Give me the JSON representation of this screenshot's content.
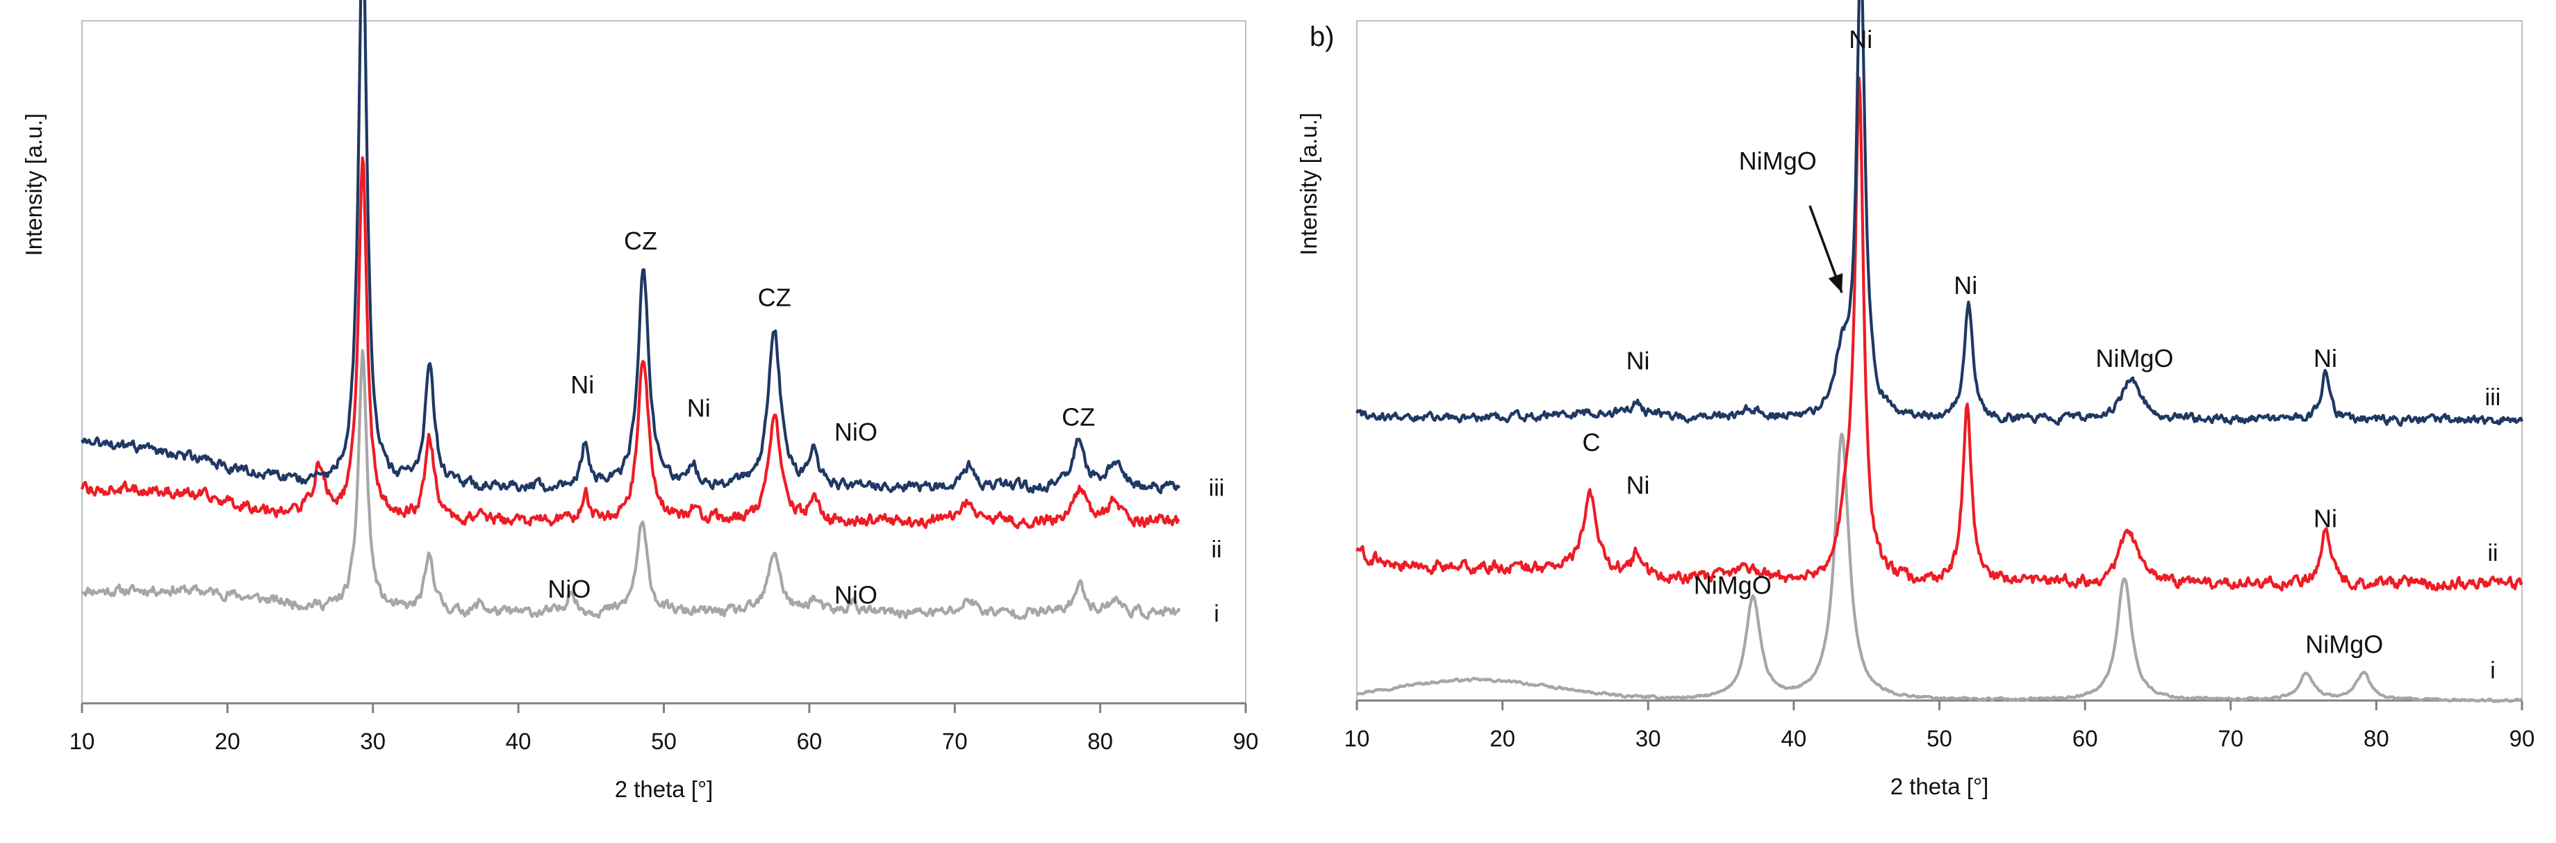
{
  "chart_data": [
    {
      "type": "line",
      "panel_label": "",
      "xlabel": "2 theta [°]",
      "ylabel": "Intensity [a.u.]",
      "xlim": [
        10,
        90
      ],
      "ylim": [
        0,
        1
      ],
      "x_ticks": [
        "10",
        "20",
        "30",
        "40",
        "50",
        "60",
        "70",
        "80",
        "90"
      ],
      "grid": false,
      "series": [
        {
          "name": "i",
          "color": "#a6a6a6",
          "x_end": 85.5,
          "baseline": 0.132,
          "noise": 0.006,
          "start": [
            12,
            0.02
          ],
          "hump": [
            17,
            8,
            0.03
          ],
          "peaks": [
            [
              29.3,
              0.38,
              0.35
            ],
            [
              33.9,
              0.08,
              0.4
            ],
            [
              37.4,
              0.015,
              0.3
            ],
            [
              43.6,
              0.035,
              0.3
            ],
            [
              48.5,
              0.13,
              0.45
            ],
            [
              57.6,
              0.09,
              0.5
            ],
            [
              60.3,
              0.02,
              0.4
            ],
            [
              63,
              0.015,
              0.4
            ],
            [
              71,
              0.02,
              0.5
            ],
            [
              78.6,
              0.04,
              0.5
            ],
            [
              81,
              0.02,
              0.5
            ]
          ]
        },
        {
          "name": "ii",
          "color": "#ee1c25",
          "x_end": 85.5,
          "baseline": 0.266,
          "noise": 0.007,
          "start": [
            12,
            0.02
          ],
          "hump": [
            15,
            8,
            0.04
          ],
          "peaks": [
            [
              26.3,
              0.07,
              0.5
            ],
            [
              29.3,
              0.53,
              0.35
            ],
            [
              33.9,
              0.12,
              0.4
            ],
            [
              37.4,
              0.015,
              0.3
            ],
            [
              44.6,
              0.04,
              0.3
            ],
            [
              48.6,
              0.24,
              0.45
            ],
            [
              52,
              0.02,
              0.3
            ],
            [
              57.6,
              0.15,
              0.5
            ],
            [
              60.3,
              0.03,
              0.4
            ],
            [
              71,
              0.03,
              0.5
            ],
            [
              78.6,
              0.05,
              0.5
            ],
            [
              81,
              0.03,
              0.5
            ]
          ]
        },
        {
          "name": "iii",
          "color": "#1f3864",
          "x_end": 85.5,
          "baseline": 0.316,
          "noise": 0.006,
          "start": [
            12,
            0.05
          ],
          "hump": [
            15.5,
            7,
            0.04
          ],
          "peaks": [
            [
              29.3,
              0.83,
              0.35
            ],
            [
              33.9,
              0.17,
              0.4
            ],
            [
              44.6,
              0.065,
              0.3
            ],
            [
              48.6,
              0.32,
              0.45
            ],
            [
              52,
              0.03,
              0.3
            ],
            [
              57.6,
              0.23,
              0.5
            ],
            [
              60.3,
              0.05,
              0.4
            ],
            [
              71,
              0.03,
              0.5
            ],
            [
              78.5,
              0.07,
              0.5
            ],
            [
              81,
              0.04,
              0.5
            ]
          ]
        }
      ],
      "end_labels": [
        {
          "text": "iii",
          "y": 0.316
        },
        {
          "text": "ii",
          "y": 0.226
        },
        {
          "text": "i",
          "y": 0.132
        }
      ],
      "annotations": [
        {
          "text": "CZ",
          "x": 48.4,
          "y": 0.665
        },
        {
          "text": "CZ",
          "x": 57.6,
          "y": 0.582
        },
        {
          "text": "CZ",
          "x": 78.5,
          "y": 0.407
        },
        {
          "text": "Ni",
          "x": 44.4,
          "y": 0.454
        },
        {
          "text": "Ni",
          "x": 52.4,
          "y": 0.42
        },
        {
          "text": "NiO",
          "x": 63.2,
          "y": 0.385
        },
        {
          "text": "NiO",
          "x": 43.5,
          "y": 0.155
        },
        {
          "text": "NiO",
          "x": 63.2,
          "y": 0.146
        }
      ]
    },
    {
      "type": "line",
      "panel_label": "b)",
      "xlabel": "2 theta [°]",
      "ylabel": "Intensity [a.u.]",
      "xlim": [
        10,
        90
      ],
      "ylim": [
        0,
        1
      ],
      "x_ticks": [
        "10",
        "20",
        "30",
        "40",
        "50",
        "60",
        "70",
        "80",
        "90"
      ],
      "grid": false,
      "series": [
        {
          "name": "i",
          "color": "#a6a6a6",
          "x_end": 90,
          "baseline": 0.0,
          "noise": 0.0015,
          "start": [
            11,
            0.0
          ],
          "hump": [
            18,
            8,
            0.03
          ],
          "peaks": [
            [
              37.2,
              0.15,
              0.6
            ],
            [
              43.3,
              0.39,
              0.6
            ],
            [
              62.7,
              0.18,
              0.6
            ],
            [
              75.2,
              0.04,
              0.6
            ],
            [
              79.1,
              0.04,
              0.6
            ]
          ]
        },
        {
          "name": "ii",
          "color": "#ee1c25",
          "x_end": 90,
          "baseline": 0.172,
          "noise": 0.007,
          "start": [
            11,
            0.04
          ],
          "hump": [
            21,
            10,
            0.02
          ],
          "peaks": [
            [
              26,
              0.11,
              0.6
            ],
            [
              29.2,
              0.03,
              0.35
            ],
            [
              36.8,
              0.02,
              1.2
            ],
            [
              43.7,
              0.09,
              0.6
            ],
            [
              44.5,
              0.71,
              0.35
            ],
            [
              51.9,
              0.26,
              0.35
            ],
            [
              63,
              0.08,
              0.7
            ],
            [
              76.5,
              0.08,
              0.4
            ]
          ]
        },
        {
          "name": "iii",
          "color": "#1f3864",
          "x_end": 90,
          "baseline": 0.413,
          "noise": 0.005,
          "start": [
            11,
            0.01
          ],
          "hump": [
            27,
            6,
            0.01
          ],
          "peaks": [
            [
              29.2,
              0.02,
              0.3
            ],
            [
              37.1,
              0.015,
              0.8
            ],
            [
              43.3,
              0.08,
              0.6
            ],
            [
              44.6,
              0.67,
              0.35
            ],
            [
              52,
              0.17,
              0.35
            ],
            [
              63.2,
              0.06,
              0.8
            ],
            [
              76.5,
              0.07,
              0.35
            ]
          ]
        }
      ],
      "end_labels": [
        {
          "text": "iii",
          "y": 0.447
        },
        {
          "text": "ii",
          "y": 0.218
        },
        {
          "text": "i",
          "y": 0.045
        }
      ],
      "annotations": [
        {
          "text": "Ni",
          "x": 44.6,
          "y": 0.96
        },
        {
          "text": "NiMgO",
          "x": 38.9,
          "y": 0.781
        },
        {
          "text": "Ni",
          "x": 51.8,
          "y": 0.598
        },
        {
          "text": "NiMgO",
          "x": 63.4,
          "y": 0.491
        },
        {
          "text": "Ni",
          "x": 76.5,
          "y": 0.491
        },
        {
          "text": "Ni",
          "x": 29.3,
          "y": 0.487
        },
        {
          "text": "C",
          "x": 26.1,
          "y": 0.367
        },
        {
          "text": "Ni",
          "x": 29.3,
          "y": 0.304
        },
        {
          "text": "Ni",
          "x": 76.5,
          "y": 0.255
        },
        {
          "text": "NiMgO",
          "x": 35.8,
          "y": 0.157
        },
        {
          "text": "NiMgO",
          "x": 77.8,
          "y": 0.07
        }
      ],
      "arrows": [
        {
          "from": [
            41.1,
            0.728
          ],
          "to": [
            43.3,
            0.6
          ]
        }
      ]
    }
  ]
}
